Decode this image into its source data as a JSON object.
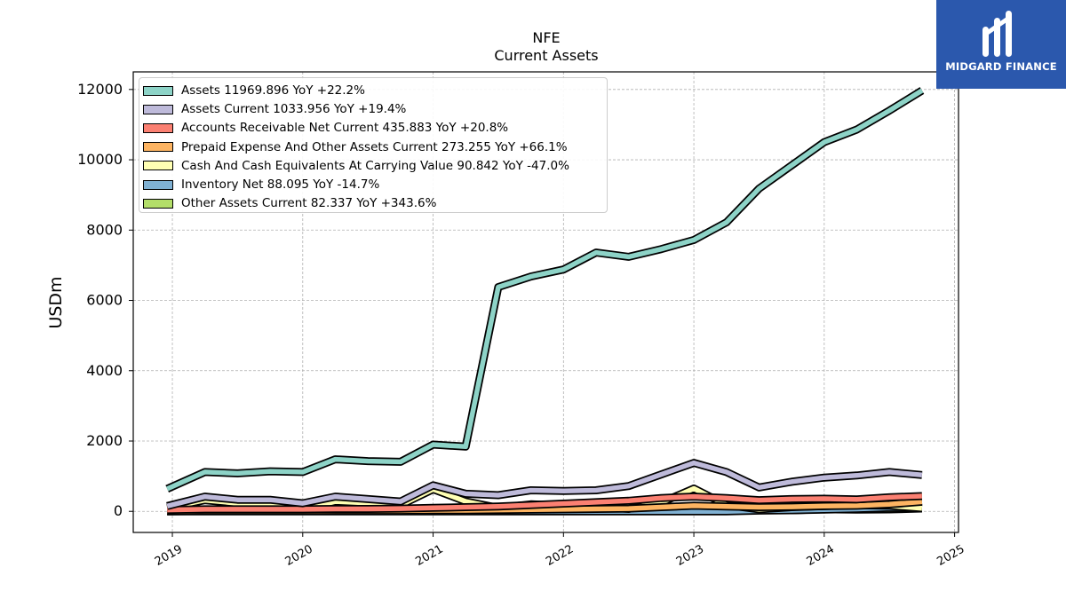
{
  "header": {
    "ticker": "NFE",
    "subtitle": "Current  Assets"
  },
  "logo": {
    "text": "MIDGARD FINANCE",
    "background": "#2b58ad"
  },
  "chart_data": {
    "type": "line",
    "ylabel": "USDm",
    "xlabel": "",
    "ylim": [
      -600,
      12500
    ],
    "xlim": [
      2018.7,
      2025.03
    ],
    "yticks": [
      0,
      2000,
      4000,
      6000,
      8000,
      10000,
      12000
    ],
    "xticks": [
      2019,
      2020,
      2021,
      2022,
      2023,
      2024,
      2025
    ],
    "grid": true,
    "legend_position": "top-left",
    "x": [
      2018.96,
      2019.25,
      2019.5,
      2019.75,
      2020.0,
      2020.25,
      2020.5,
      2020.75,
      2021.0,
      2021.25,
      2021.5,
      2021.75,
      2022.0,
      2022.25,
      2022.5,
      2022.75,
      2023.0,
      2023.25,
      2023.5,
      2023.75,
      2024.0,
      2024.25,
      2024.5,
      2024.75
    ],
    "series": [
      {
        "name": "Other Assets Current  82.337 YoY +343.6%",
        "color": "#b3de69",
        "values": [
          10,
          15,
          20,
          25,
          40,
          35,
          30,
          30,
          30,
          40,
          60,
          50,
          30,
          40,
          60,
          70,
          80,
          60,
          40,
          30,
          60,
          50,
          55,
          82
        ]
      },
      {
        "name": "Inventory Net  88.095 YoY -14.7%",
        "color": "#80b1d3",
        "values": [
          0,
          0,
          0,
          0,
          0,
          0,
          0,
          0,
          0,
          0,
          0,
          0,
          0,
          0,
          0,
          0,
          0,
          0,
          20,
          30,
          50,
          70,
          100,
          88
        ]
      },
      {
        "name": "Cash And Cash Equivalents At Carrying Value  90.842 YoY -47.0%",
        "color": "#ffffb3",
        "values": [
          100,
          320,
          230,
          210,
          50,
          280,
          240,
          180,
          630,
          280,
          100,
          200,
          160,
          140,
          70,
          250,
          650,
          180,
          60,
          120,
          150,
          180,
          160,
          90
        ]
      },
      {
        "name": "Prepaid Expense And Other Assets Current  273.255 YoY +66.1%",
        "color": "#fdb462",
        "values": [
          0,
          10,
          10,
          10,
          10,
          20,
          20,
          20,
          30,
          30,
          40,
          50,
          60,
          70,
          80,
          120,
          160,
          140,
          120,
          130,
          150,
          160,
          200,
          273
        ]
      },
      {
        "name": "Accounts Receivable Net Current  435.883 YoY +20.8%",
        "color": "#fb8072",
        "values": [
          40,
          60,
          60,
          60,
          60,
          70,
          70,
          80,
          100,
          120,
          140,
          180,
          220,
          260,
          300,
          380,
          420,
          380,
          320,
          350,
          360,
          340,
          400,
          436
        ]
      },
      {
        "name": "Assets Current  1033.956 YoY +19.4%",
        "color": "#bebada",
        "values": [
          150,
          420,
          330,
          330,
          230,
          420,
          350,
          280,
          740,
          500,
          460,
          600,
          580,
          600,
          720,
          1050,
          1380,
          1120,
          680,
          840,
          960,
          1020,
          1120,
          1034
        ]
      },
      {
        "name": "Assets  11969.896 YoY +22.2%",
        "color": "#8dd3c7",
        "values": [
          640,
          1120,
          1080,
          1140,
          1120,
          1480,
          1430,
          1410,
          1900,
          1840,
          6380,
          6680,
          6880,
          7360,
          7240,
          7460,
          7720,
          8220,
          9180,
          9840,
          10500,
          10860,
          11400,
          11970
        ]
      }
    ]
  }
}
